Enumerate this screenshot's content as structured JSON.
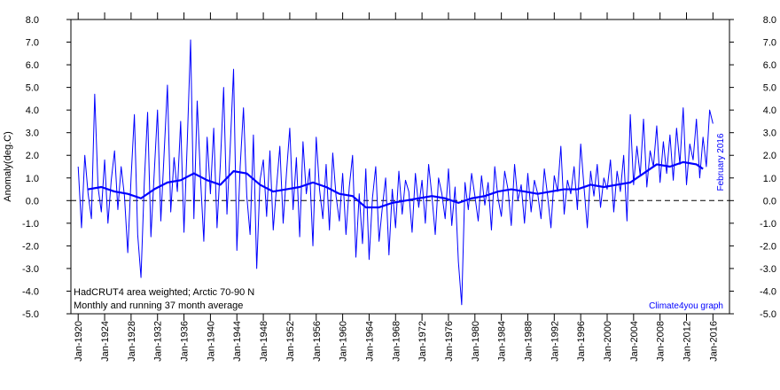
{
  "chart_data": {
    "type": "line",
    "ylabel": "Anomaly(deg.C)",
    "annotations": [
      "HadCRUT4 area weighted; Arctic 70-90 N",
      "Monthly and running 37 month average"
    ],
    "credit": "Climate4you graph",
    "date_note": "February 2016",
    "zero_line": true,
    "xlim": [
      1918.9,
      2018.5
    ],
    "ylim": [
      -5,
      8
    ],
    "xticks": [
      {
        "value": 1920,
        "label": "Jan-1920"
      },
      {
        "value": 1924,
        "label": "Jan-1924"
      },
      {
        "value": 1928,
        "label": "Jan-1928"
      },
      {
        "value": 1932,
        "label": "Jan-1932"
      },
      {
        "value": 1936,
        "label": "Jan-1936"
      },
      {
        "value": 1940,
        "label": "Jan-1940"
      },
      {
        "value": 1944,
        "label": "Jan-1944"
      },
      {
        "value": 1948,
        "label": "Jan-1948"
      },
      {
        "value": 1952,
        "label": "Jan-1952"
      },
      {
        "value": 1956,
        "label": "Jan-1956"
      },
      {
        "value": 1960,
        "label": "Jan-1960"
      },
      {
        "value": 1964,
        "label": "Jan-1964"
      },
      {
        "value": 1968,
        "label": "Jan-1968"
      },
      {
        "value": 1972,
        "label": "Jan-1972"
      },
      {
        "value": 1976,
        "label": "Jan-1976"
      },
      {
        "value": 1980,
        "label": "Jan-1980"
      },
      {
        "value": 1984,
        "label": "Jan-1984"
      },
      {
        "value": 1988,
        "label": "Jan-1988"
      },
      {
        "value": 1992,
        "label": "Jan-1992"
      },
      {
        "value": 1996,
        "label": "Jan-1996"
      },
      {
        "value": 2000,
        "label": "Jan-2000"
      },
      {
        "value": 2004,
        "label": "Jan-2004"
      },
      {
        "value": 2008,
        "label": "Jan-2008"
      },
      {
        "value": 2012,
        "label": "Jan-2012"
      },
      {
        "value": 2016,
        "label": "Jan-2016"
      }
    ],
    "yticks": [
      {
        "value": 8,
        "label": "8.0"
      },
      {
        "value": 7,
        "label": "7.0"
      },
      {
        "value": 6,
        "label": "6.0"
      },
      {
        "value": 5,
        "label": "5.0"
      },
      {
        "value": 4,
        "label": "4.0"
      },
      {
        "value": 3,
        "label": "3.0"
      },
      {
        "value": 2,
        "label": "2.0"
      },
      {
        "value": 1,
        "label": "1.0"
      },
      {
        "value": 0,
        "label": "0.0"
      },
      {
        "value": -1,
        "label": "-1.0"
      },
      {
        "value": -2,
        "label": "-2.0"
      },
      {
        "value": -3,
        "label": "-3.0"
      },
      {
        "value": -4,
        "label": "-4.0"
      },
      {
        "value": -5,
        "label": "-5.0"
      }
    ],
    "series": [
      {
        "color": "#0000ff",
        "width": 1,
        "x": [
          1920,
          1920.5,
          1921,
          1921.5,
          1922,
          1922.5,
          1923,
          1923.5,
          1924,
          1924.5,
          1925,
          1925.5,
          1926,
          1926.5,
          1927,
          1927.5,
          1928,
          1928.5,
          1929,
          1929.5,
          1930,
          1930.5,
          1931,
          1931.5,
          1932,
          1932.5,
          1933,
          1933.5,
          1934,
          1934.5,
          1935,
          1935.5,
          1936,
          1936.5,
          1937,
          1937.5,
          1938,
          1938.5,
          1939,
          1939.5,
          1940,
          1940.5,
          1941,
          1941.5,
          1942,
          1942.5,
          1943,
          1943.5,
          1944,
          1944.5,
          1945,
          1945.5,
          1946,
          1946.5,
          1947,
          1947.5,
          1948,
          1948.5,
          1949,
          1949.5,
          1950,
          1950.5,
          1951,
          1951.5,
          1952,
          1952.5,
          1953,
          1953.5,
          1954,
          1954.5,
          1955,
          1955.5,
          1956,
          1956.5,
          1957,
          1957.5,
          1958,
          1958.5,
          1959,
          1959.5,
          1960,
          1960.5,
          1961,
          1961.5,
          1962,
          1962.5,
          1963,
          1963.5,
          1964,
          1964.5,
          1965,
          1965.5,
          1966,
          1966.5,
          1967,
          1967.5,
          1968,
          1968.5,
          1969,
          1969.5,
          1970,
          1970.5,
          1971,
          1971.5,
          1972,
          1972.5,
          1973,
          1973.5,
          1974,
          1974.5,
          1975,
          1975.5,
          1976,
          1976.5,
          1977,
          1977.5,
          1978,
          1978.5,
          1979,
          1979.5,
          1980,
          1980.5,
          1981,
          1981.5,
          1982,
          1982.5,
          1983,
          1983.5,
          1984,
          1984.5,
          1985,
          1985.5,
          1986,
          1986.5,
          1987,
          1987.5,
          1988,
          1988.5,
          1989,
          1989.5,
          1990,
          1990.5,
          1991,
          1991.5,
          1992,
          1992.5,
          1993,
          1993.5,
          1994,
          1994.5,
          1995,
          1995.5,
          1996,
          1996.5,
          1997,
          1997.5,
          1998,
          1998.5,
          1999,
          1999.5,
          2000,
          2000.5,
          2001,
          2001.5,
          2002,
          2002.5,
          2003,
          2003.5,
          2004,
          2004.5,
          2005,
          2005.5,
          2006,
          2006.5,
          2007,
          2007.5,
          2008,
          2008.5,
          2009,
          2009.5,
          2010,
          2010.5,
          2011,
          2011.5,
          2012,
          2012.5,
          2013,
          2013.5,
          2014,
          2014.5,
          2015,
          2015.5,
          2016
        ],
        "values": [
          1.5,
          -1.2,
          2.0,
          0.3,
          -0.8,
          4.7,
          0.6,
          -0.5,
          1.8,
          -1.0,
          0.9,
          2.2,
          -0.4,
          1.5,
          0.2,
          -2.3,
          1.0,
          3.8,
          -1.5,
          -3.4,
          0.8,
          3.9,
          -1.6,
          1.2,
          4.0,
          -0.9,
          2.1,
          5.1,
          -0.5,
          1.9,
          0.4,
          3.5,
          -1.4,
          2.6,
          7.1,
          -0.8,
          4.4,
          1.0,
          -1.8,
          2.8,
          0.3,
          3.2,
          -1.2,
          1.6,
          5.0,
          -0.6,
          2.4,
          5.8,
          -2.2,
          1.5,
          4.1,
          0.2,
          -1.5,
          2.9,
          -3.0,
          0.9,
          1.8,
          -0.7,
          2.2,
          -1.3,
          0.6,
          2.4,
          -1.0,
          1.2,
          3.2,
          -0.4,
          1.9,
          -1.6,
          2.6,
          0.3,
          1.4,
          -2.0,
          2.8,
          0.5,
          -0.8,
          1.6,
          -1.3,
          2.1,
          0.2,
          -0.9,
          1.2,
          -1.5,
          0.6,
          2.0,
          -2.5,
          0.3,
          -1.9,
          1.4,
          -2.6,
          0.1,
          1.5,
          -1.8,
          -0.3,
          1.0,
          -2.4,
          0.5,
          -1.2,
          1.3,
          -0.6,
          0.9,
          0.4,
          -1.4,
          1.2,
          -0.3,
          0.9,
          -1.0,
          1.6,
          0.2,
          -1.5,
          1.0,
          0.3,
          -0.8,
          1.4,
          -1.1,
          0.6,
          -2.7,
          -4.6,
          0.8,
          -0.4,
          1.2,
          0.2,
          -0.9,
          1.1,
          -0.2,
          0.8,
          -1.3,
          1.5,
          0.1,
          -0.7,
          1.3,
          0.5,
          -1.1,
          1.6,
          0.0,
          0.7,
          -1.0,
          1.2,
          -0.5,
          0.9,
          0.3,
          -0.8,
          1.4,
          0.2,
          -1.2,
          1.1,
          0.4,
          2.4,
          -0.6,
          0.9,
          0.3,
          1.5,
          -0.4,
          2.5,
          0.6,
          -1.2,
          1.3,
          0.2,
          1.6,
          -0.3,
          1.0,
          0.5,
          1.8,
          -0.5,
          1.3,
          0.4,
          2.0,
          -0.9,
          3.8,
          0.7,
          2.4,
          1.1,
          3.6,
          0.6,
          2.2,
          1.5,
          3.3,
          0.8,
          2.6,
          1.2,
          2.9,
          0.9,
          3.2,
          1.6,
          4.1,
          0.7,
          2.5,
          1.8,
          3.6,
          1.0,
          2.8,
          1.5,
          4.0,
          3.4
        ]
      },
      {
        "color": "#0000ff",
        "width": 2.2,
        "x": [
          1921.5,
          1923.5,
          1925.5,
          1927.5,
          1929.5,
          1931.5,
          1933.5,
          1935.5,
          1937.5,
          1939.5,
          1941.5,
          1943.5,
          1945.5,
          1947.5,
          1949.5,
          1951.5,
          1953.5,
          1955.5,
          1957.5,
          1959.5,
          1961.5,
          1963.5,
          1965.5,
          1967.5,
          1969.5,
          1971.5,
          1973.5,
          1975.5,
          1977.5,
          1979.5,
          1981.5,
          1983.5,
          1985.5,
          1987.5,
          1989.5,
          1991.5,
          1993.5,
          1995.5,
          1997.5,
          1999.5,
          2001.5,
          2003.5,
          2005.5,
          2007.5,
          2009.5,
          2011.5,
          2013.5,
          2014.5
        ],
        "values": [
          0.5,
          0.6,
          0.4,
          0.3,
          0.1,
          0.5,
          0.8,
          0.9,
          1.2,
          0.9,
          0.7,
          1.3,
          1.2,
          0.7,
          0.4,
          0.5,
          0.6,
          0.8,
          0.6,
          0.3,
          0.2,
          -0.3,
          -0.3,
          -0.1,
          0.0,
          0.1,
          0.2,
          0.1,
          -0.1,
          0.1,
          0.2,
          0.4,
          0.5,
          0.4,
          0.3,
          0.4,
          0.5,
          0.5,
          0.7,
          0.6,
          0.7,
          0.8,
          1.2,
          1.6,
          1.5,
          1.7,
          1.6,
          1.4
        ]
      }
    ]
  }
}
